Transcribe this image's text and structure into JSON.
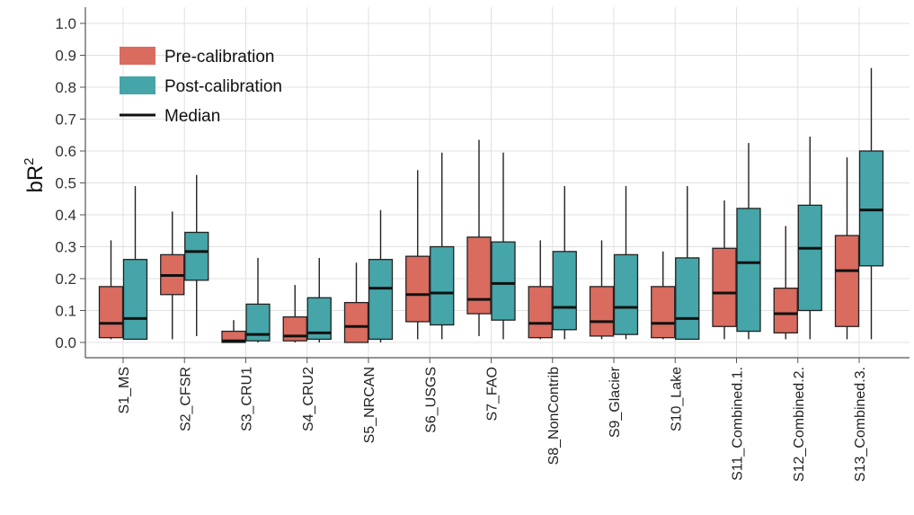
{
  "chart_data": {
    "type": "box",
    "ylabel": "bR",
    "ylabel_sup": "2",
    "ylim": [
      0,
      1.0
    ],
    "yticks": [
      "0.0",
      "0.1",
      "0.2",
      "0.3",
      "0.4",
      "0.5",
      "0.6",
      "0.7",
      "0.8",
      "0.9",
      "1.0"
    ],
    "grid": true,
    "legend_position": "top-left",
    "colors": {
      "pre": "#d96b5f",
      "post": "#45a5a8",
      "median": "#111111",
      "grid": "#e0e0e0"
    },
    "legend": [
      {
        "key": "pre",
        "label": "Pre-calibration"
      },
      {
        "key": "post",
        "label": "Post-calibration"
      },
      {
        "key": "median",
        "label": "Median"
      }
    ],
    "categories": [
      "S1_MS",
      "S2_CFSR",
      "S3_CRU1",
      "S4_CRU2",
      "S5_NRCAN",
      "S6_USGS",
      "S7_FAO",
      "S8_NonContrib",
      "S9_Glacier",
      "S10_Lake",
      "S11_Combined.1.",
      "S12_Combined.2.",
      "S13_Combined.3."
    ],
    "series": [
      {
        "name": "Pre-calibration",
        "key": "pre",
        "boxes": [
          {
            "min": 0.01,
            "q1": 0.015,
            "median": 0.06,
            "q3": 0.175,
            "max": 0.32
          },
          {
            "min": 0.01,
            "q1": 0.15,
            "median": 0.21,
            "q3": 0.275,
            "max": 0.41
          },
          {
            "min": 0.0,
            "q1": 0.0,
            "median": 0.005,
            "q3": 0.035,
            "max": 0.07
          },
          {
            "min": 0.0,
            "q1": 0.005,
            "median": 0.02,
            "q3": 0.08,
            "max": 0.18
          },
          {
            "min": 0.0,
            "q1": 0.0,
            "median": 0.05,
            "q3": 0.125,
            "max": 0.25
          },
          {
            "min": 0.01,
            "q1": 0.065,
            "median": 0.15,
            "q3": 0.27,
            "max": 0.54
          },
          {
            "min": 0.02,
            "q1": 0.09,
            "median": 0.135,
            "q3": 0.33,
            "max": 0.635
          },
          {
            "min": 0.01,
            "q1": 0.015,
            "median": 0.06,
            "q3": 0.175,
            "max": 0.32
          },
          {
            "min": 0.01,
            "q1": 0.02,
            "median": 0.065,
            "q3": 0.175,
            "max": 0.32
          },
          {
            "min": 0.01,
            "q1": 0.015,
            "median": 0.06,
            "q3": 0.175,
            "max": 0.285
          },
          {
            "min": 0.01,
            "q1": 0.05,
            "median": 0.155,
            "q3": 0.295,
            "max": 0.445
          },
          {
            "min": 0.01,
            "q1": 0.03,
            "median": 0.09,
            "q3": 0.17,
            "max": 0.365
          },
          {
            "min": 0.01,
            "q1": 0.05,
            "median": 0.225,
            "q3": 0.335,
            "max": 0.58
          }
        ]
      },
      {
        "name": "Post-calibration",
        "key": "post",
        "boxes": [
          {
            "min": 0.01,
            "q1": 0.01,
            "median": 0.075,
            "q3": 0.26,
            "max": 0.49
          },
          {
            "min": 0.02,
            "q1": 0.195,
            "median": 0.285,
            "q3": 0.345,
            "max": 0.525
          },
          {
            "min": 0.0,
            "q1": 0.005,
            "median": 0.025,
            "q3": 0.12,
            "max": 0.265
          },
          {
            "min": 0.0,
            "q1": 0.01,
            "median": 0.03,
            "q3": 0.14,
            "max": 0.265
          },
          {
            "min": 0.0,
            "q1": 0.01,
            "median": 0.17,
            "q3": 0.26,
            "max": 0.415
          },
          {
            "min": 0.01,
            "q1": 0.055,
            "median": 0.155,
            "q3": 0.3,
            "max": 0.595
          },
          {
            "min": 0.01,
            "q1": 0.07,
            "median": 0.185,
            "q3": 0.315,
            "max": 0.595
          },
          {
            "min": 0.01,
            "q1": 0.04,
            "median": 0.11,
            "q3": 0.285,
            "max": 0.49
          },
          {
            "min": 0.01,
            "q1": 0.025,
            "median": 0.11,
            "q3": 0.275,
            "max": 0.49
          },
          {
            "min": 0.01,
            "q1": 0.01,
            "median": 0.075,
            "q3": 0.265,
            "max": 0.49
          },
          {
            "min": 0.01,
            "q1": 0.035,
            "median": 0.25,
            "q3": 0.42,
            "max": 0.625
          },
          {
            "min": 0.01,
            "q1": 0.1,
            "median": 0.295,
            "q3": 0.43,
            "max": 0.645
          },
          {
            "min": 0.01,
            "q1": 0.24,
            "median": 0.415,
            "q3": 0.6,
            "max": 0.86
          }
        ]
      }
    ]
  }
}
